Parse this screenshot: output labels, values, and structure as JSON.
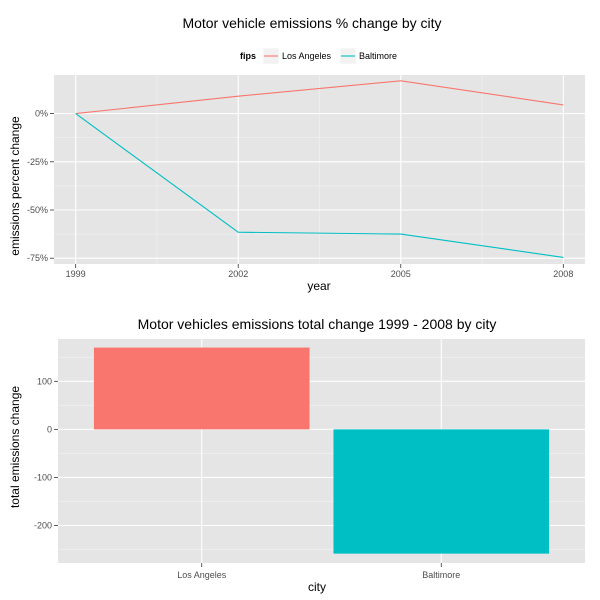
{
  "chart_data": [
    {
      "type": "line",
      "title": "Motor vehicle emissions % change by city",
      "xlabel": "year",
      "ylabel": "emissions percent change",
      "x": [
        1999,
        2002,
        2005,
        2008
      ],
      "x_ticks": [
        "1999",
        "2002",
        "2005",
        "2008"
      ],
      "xlim": [
        1998.6,
        2008.4
      ],
      "ylim": [
        -0.78,
        0.2
      ],
      "y_ticks": [
        0,
        -0.25,
        -0.5,
        -0.75
      ],
      "y_tick_labels": [
        "0%",
        "-25%",
        "-50%",
        "-75%"
      ],
      "legend": {
        "title": "fips",
        "position": "top"
      },
      "grid": true,
      "series": [
        {
          "name": "Los Angeles",
          "color": "#F8766D",
          "values": [
            0.0,
            0.09,
            0.17,
            0.045
          ]
        },
        {
          "name": "Baltimore",
          "color": "#00BFC4",
          "values": [
            0.0,
            -0.615,
            -0.625,
            -0.746
          ]
        }
      ]
    },
    {
      "type": "bar",
      "title": "Motor vehicles emissions total change 1999 - 2008 by city",
      "xlabel": "city",
      "ylabel": "total emissions change",
      "categories": [
        "Los Angeles",
        "Baltimore"
      ],
      "values": [
        170.2,
        -258.5
      ],
      "colors": [
        "#F8766D",
        "#00BFC4"
      ],
      "ylim": [
        -278,
        188
      ],
      "y_ticks": [
        100,
        0,
        -100,
        -200
      ],
      "y_tick_labels": [
        "100",
        "0",
        "-100",
        "-200"
      ],
      "grid": true
    }
  ]
}
